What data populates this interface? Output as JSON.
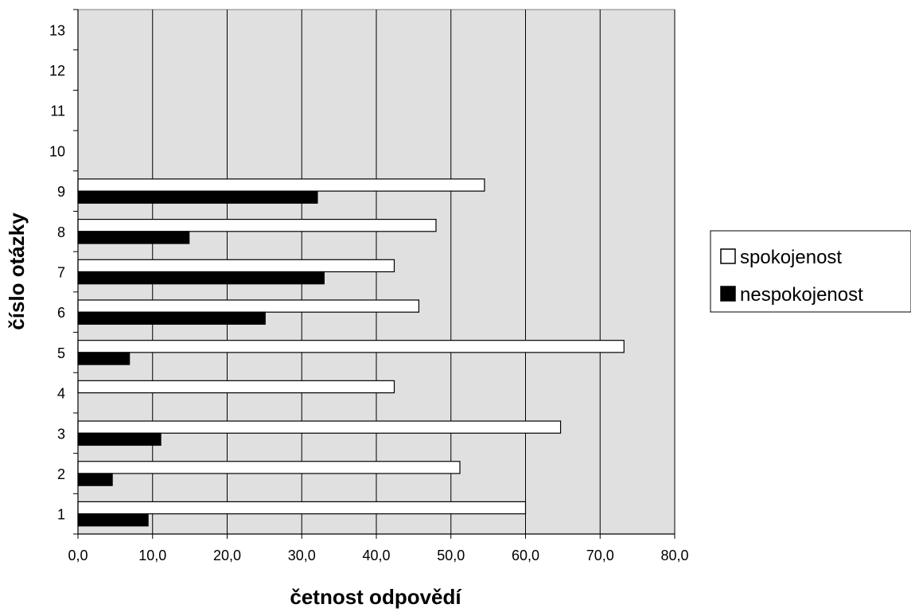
{
  "chart_data": {
    "type": "bar",
    "orientation": "horizontal",
    "categories": [
      "1",
      "2",
      "3",
      "4",
      "5",
      "6",
      "7",
      "8",
      "9",
      "10",
      "11",
      "12",
      "13"
    ],
    "series": [
      {
        "name": "spokojenost",
        "color": "#ffffff",
        "values": [
          60.0,
          51.2,
          64.7,
          42.4,
          73.2,
          45.7,
          42.4,
          48.0,
          54.5,
          null,
          null,
          null,
          null
        ]
      },
      {
        "name": "nespokojenost",
        "color": "#000000",
        "values": [
          9.4,
          4.6,
          11.1,
          0,
          6.9,
          25.1,
          33.0,
          14.9,
          32.1,
          null,
          null,
          null,
          null
        ]
      }
    ],
    "xticks": [
      "0,0",
      "10,0",
      "20,0",
      "30,0",
      "40,0",
      "50,0",
      "60,0",
      "70,0",
      "80,0"
    ],
    "xlim": [
      0,
      80
    ],
    "xlabel": "četnost odpovědí",
    "ylabel": "číslo otázky",
    "grid": "vertical",
    "plot_background": "#e0e0e0",
    "legend_position": "right"
  }
}
